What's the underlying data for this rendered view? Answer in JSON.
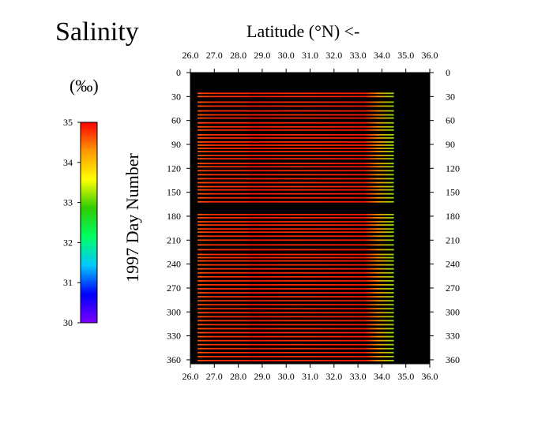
{
  "chart_data": {
    "type": "heatmap",
    "title": "Salinity",
    "xlabel": "Latitude (°N) <-",
    "ylabel": "1997 Day Number",
    "colorbar_label": "(‰)",
    "x_ticks": [
      "26.0",
      "27.0",
      "28.0",
      "29.0",
      "30.0",
      "31.0",
      "32.0",
      "33.0",
      "34.0",
      "35.0",
      "36.0"
    ],
    "y_ticks": [
      "0",
      "30",
      "60",
      "90",
      "120",
      "150",
      "180",
      "210",
      "240",
      "270",
      "300",
      "330",
      "360"
    ],
    "colorbar_ticks": [
      "35",
      "34",
      "33",
      "32",
      "31",
      "30"
    ],
    "xlim": [
      26.0,
      36.0
    ],
    "ylim": [
      0,
      365
    ],
    "clim": [
      30,
      35
    ],
    "background_color": "#000000",
    "colormap": [
      "#7b00ff",
      "#0000ff",
      "#00c8ff",
      "#00ff66",
      "#2ecc00",
      "#ffff00",
      "#ff9900",
      "#ff0000"
    ],
    "track_start_lat": 26.3,
    "track_end_lat": 34.5,
    "north_end_salinity": 33.2,
    "south_end_salinity": 34.6,
    "interior_salinity": 34.8,
    "track_days": [
      26,
      30,
      37,
      42,
      48,
      53,
      57,
      63,
      68,
      72,
      78,
      82,
      87,
      91,
      95,
      99,
      104,
      108,
      114,
      118,
      123,
      128,
      133,
      138,
      143,
      147,
      152,
      157,
      162,
      178,
      182,
      187,
      191,
      196,
      200,
      205,
      210,
      216,
      222,
      228,
      232,
      236,
      241,
      246,
      251,
      256,
      261,
      266,
      271,
      276,
      281,
      286,
      291,
      296,
      301,
      306,
      311,
      316,
      321,
      326,
      331,
      336,
      341,
      346,
      351,
      356,
      361
    ]
  }
}
